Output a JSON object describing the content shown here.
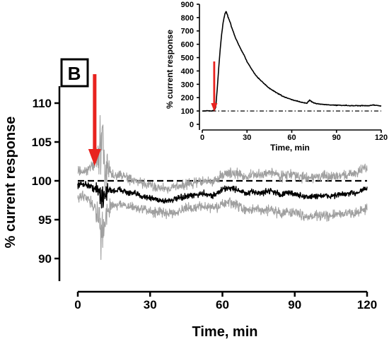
{
  "panel_label": "B",
  "chart_data": [
    {
      "type": "line",
      "xlabel": "Time, min",
      "ylabel": "% current response",
      "xlim": [
        0,
        120
      ],
      "ylim": [
        88,
        112
      ],
      "x_ticks": [
        0,
        30,
        60,
        90,
        120
      ],
      "y_ticks": [
        90,
        95,
        100,
        105,
        110
      ],
      "reference_line": {
        "y": 100,
        "style": "dashed"
      },
      "arrow": {
        "x": 7,
        "color": "#e8231f"
      },
      "series": [
        {
          "role": "mean",
          "color": "#000000",
          "x": [
            0,
            3,
            5,
            7,
            9,
            10,
            11,
            13,
            15,
            18,
            21,
            24,
            27,
            30,
            33,
            36,
            40,
            44,
            48,
            52,
            56,
            58,
            60,
            63,
            66,
            68,
            70,
            73,
            76,
            80,
            84,
            88,
            92,
            96,
            100,
            104,
            108,
            112,
            116,
            118,
            120
          ],
          "y": [
            99.5,
            99.6,
            99.3,
            99.0,
            98.6,
            97.8,
            98.4,
            98.8,
            98.7,
            98.9,
            98.4,
            98.3,
            98.0,
            97.8,
            97.6,
            97.4,
            97.6,
            97.9,
            98.1,
            98.4,
            98.1,
            98.4,
            98.9,
            99.1,
            98.9,
            98.6,
            98.3,
            98.6,
            98.4,
            98.8,
            98.2,
            98.5,
            98.1,
            97.9,
            98.1,
            98.0,
            98.2,
            98.3,
            98.5,
            98.9,
            99.0
          ]
        },
        {
          "role": "upper_error",
          "color": "#a0a0a0",
          "x": [
            0,
            3,
            5,
            7,
            9,
            10,
            11,
            13,
            15,
            18,
            21,
            24,
            27,
            30,
            33,
            36,
            40,
            44,
            48,
            52,
            56,
            58,
            60,
            63,
            66,
            68,
            70,
            73,
            76,
            80,
            84,
            88,
            92,
            96,
            100,
            104,
            108,
            112,
            116,
            118,
            120
          ],
          "y": [
            101.3,
            101.0,
            101.6,
            102.4,
            103.8,
            104.5,
            102.4,
            101.2,
            100.6,
            100.8,
            100.3,
            99.9,
            99.6,
            99.4,
            99.2,
            99.0,
            99.2,
            99.5,
            99.7,
            100.0,
            99.8,
            100.3,
            100.8,
            101.0,
            100.9,
            100.7,
            100.5,
            100.8,
            100.7,
            101.2,
            100.6,
            100.9,
            100.5,
            100.4,
            100.6,
            100.5,
            100.7,
            100.8,
            101.1,
            101.5,
            101.7
          ]
        },
        {
          "role": "lower_error",
          "color": "#a0a0a0",
          "x": [
            0,
            3,
            5,
            7,
            9,
            10,
            11,
            13,
            15,
            18,
            21,
            24,
            27,
            30,
            33,
            36,
            40,
            44,
            48,
            52,
            56,
            58,
            60,
            63,
            66,
            68,
            70,
            73,
            76,
            80,
            84,
            88,
            92,
            96,
            100,
            104,
            108,
            112,
            116,
            118,
            120
          ],
          "y": [
            97.8,
            98.2,
            97.4,
            96.5,
            94.5,
            91.8,
            95.0,
            96.6,
            96.9,
            97.0,
            96.6,
            96.6,
            96.3,
            96.1,
            96.0,
            95.8,
            96.0,
            96.3,
            96.5,
            96.8,
            96.5,
            96.6,
            97.0,
            97.2,
            96.9,
            96.5,
            96.1,
            96.4,
            96.1,
            96.4,
            95.8,
            96.1,
            95.7,
            95.4,
            95.6,
            95.4,
            95.7,
            95.8,
            95.9,
            96.3,
            96.4
          ]
        }
      ]
    },
    {
      "type": "line",
      "xlabel": "Time, min",
      "ylabel": "% current response",
      "xlim": [
        0,
        120
      ],
      "ylim": [
        0,
        900
      ],
      "x_ticks": [
        0,
        30,
        60,
        90,
        120
      ],
      "y_ticks": [
        0,
        100,
        200,
        300,
        400,
        500,
        600,
        700,
        800,
        900
      ],
      "reference_line": {
        "y": 100,
        "style": "dash-dot"
      },
      "arrow": {
        "x": 8,
        "color": "#e8231f"
      },
      "series": [
        {
          "color": "#000000",
          "x": [
            0,
            3,
            6,
            8,
            9,
            10,
            11,
            12,
            13,
            14,
            15,
            16,
            18,
            20,
            22,
            25,
            28,
            30,
            33,
            36,
            40,
            45,
            50,
            55,
            60,
            65,
            70,
            72,
            74,
            76,
            80,
            85,
            90,
            95,
            100,
            105,
            110,
            115,
            120
          ],
          "y": [
            98,
            102,
            100,
            104,
            125,
            260,
            420,
            560,
            680,
            760,
            820,
            845,
            780,
            720,
            655,
            580,
            520,
            470,
            415,
            365,
            320,
            270,
            235,
            205,
            185,
            170,
            158,
            180,
            165,
            156,
            150,
            146,
            143,
            142,
            140,
            140,
            139,
            145,
            138
          ]
        }
      ]
    }
  ]
}
